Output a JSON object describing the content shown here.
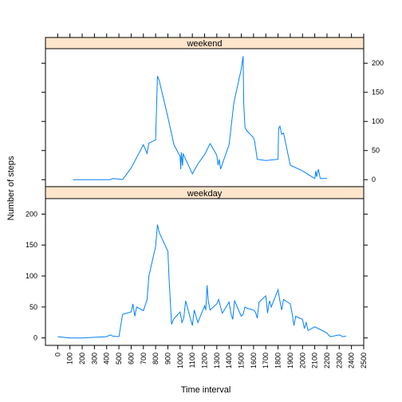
{
  "chart_data": {
    "type": "line",
    "xlabel": "Time interval",
    "ylabel": "Number of steps",
    "xlim": [
      -100,
      2500
    ],
    "ylim": [
      -12,
      225
    ],
    "x_ticks": [
      0,
      100,
      200,
      300,
      400,
      500,
      600,
      700,
      800,
      900,
      1000,
      1100,
      1200,
      1300,
      1400,
      1500,
      1600,
      1700,
      1800,
      1900,
      2000,
      2100,
      2200,
      2300,
      2400,
      2500
    ],
    "y_ticks": [
      0,
      50,
      100,
      150,
      200
    ],
    "line_color": "#0080ff",
    "strip_color": "#ffe5cc",
    "panels": [
      {
        "name": "weekend",
        "x": [
          125,
          200,
          300,
          400,
          430,
          450,
          500,
          530,
          600,
          700,
          730,
          745,
          800,
          815,
          830,
          900,
          950,
          1000,
          1005,
          1010,
          1020,
          1025,
          1030,
          1100,
          1145,
          1200,
          1245,
          1300,
          1310,
          1320,
          1330,
          1400,
          1440,
          1500,
          1515,
          1520,
          1530,
          1545,
          1600,
          1610,
          1630,
          1700,
          1800,
          1805,
          1815,
          1830,
          1845,
          1900,
          2000,
          2100,
          2110,
          2115,
          2130,
          2145,
          2200
        ],
        "values": [
          0,
          0,
          0,
          0,
          0,
          2,
          1,
          0,
          20,
          60,
          45,
          63,
          68,
          178,
          170,
          107,
          60,
          40,
          18,
          47,
          24,
          44,
          42,
          10,
          27,
          43,
          62,
          42,
          25,
          35,
          18,
          60,
          133,
          190,
          212,
          130,
          90,
          84,
          72,
          65,
          35,
          33,
          35,
          88,
          92,
          78,
          80,
          25,
          15,
          2,
          15,
          5,
          18,
          2,
          2
        ]
      },
      {
        "name": "weekday",
        "x": [
          0,
          100,
          200,
          300,
          400,
          430,
          450,
          500,
          530,
          600,
          615,
          630,
          645,
          700,
          730,
          745,
          800,
          815,
          830,
          900,
          910,
          920,
          930,
          945,
          1000,
          1015,
          1030,
          1045,
          1100,
          1115,
          1130,
          1145,
          1200,
          1210,
          1220,
          1230,
          1245,
          1300,
          1315,
          1330,
          1345,
          1400,
          1415,
          1430,
          1445,
          1500,
          1515,
          1530,
          1545,
          1600,
          1615,
          1630,
          1645,
          1700,
          1715,
          1730,
          1745,
          1800,
          1815,
          1830,
          1845,
          1900,
          1915,
          1930,
          1945,
          2000,
          2015,
          2030,
          2045,
          2100,
          2130,
          2200,
          2215,
          2230,
          2300,
          2330,
          2355
        ],
        "values": [
          2,
          0,
          0,
          1,
          2,
          5,
          3,
          2,
          38,
          42,
          55,
          35,
          50,
          44,
          62,
          100,
          148,
          183,
          170,
          140,
          95,
          60,
          22,
          30,
          42,
          25,
          32,
          60,
          20,
          45,
          35,
          25,
          52,
          45,
          85,
          60,
          45,
          55,
          62,
          50,
          40,
          58,
          40,
          30,
          60,
          35,
          38,
          50,
          48,
          45,
          42,
          32,
          58,
          68,
          40,
          60,
          50,
          78,
          60,
          45,
          62,
          55,
          40,
          20,
          35,
          30,
          15,
          25,
          12,
          18,
          15,
          8,
          4,
          2,
          5,
          2,
          3
        ]
      }
    ]
  }
}
